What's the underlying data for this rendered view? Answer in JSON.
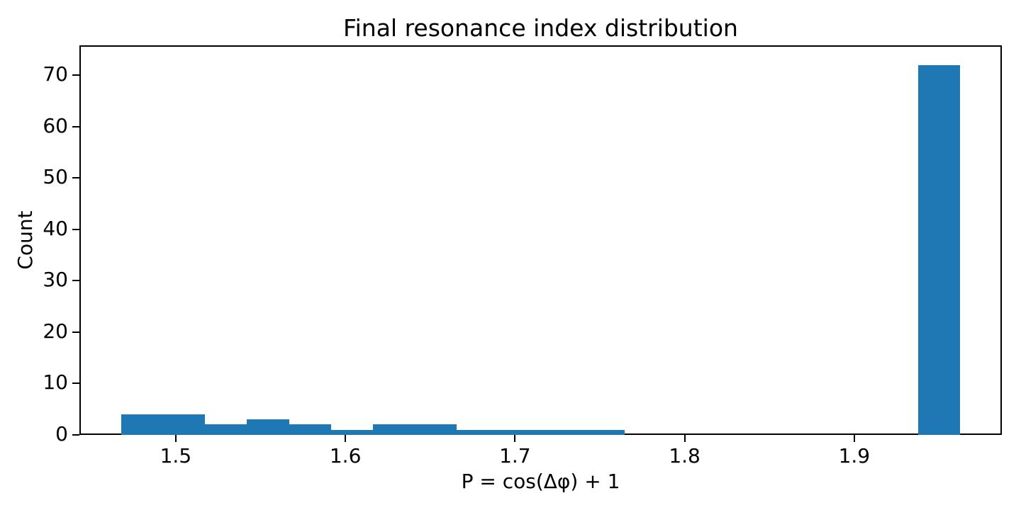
{
  "figure": {
    "title": "Final resonance index distribution",
    "xlabel": "P = cos(Δφ) + 1",
    "ylabel": "Count"
  },
  "chart_data": {
    "type": "bar",
    "subtype": "histogram",
    "title": "Final resonance index distribution",
    "xlabel": "P = cos(Δφ) + 1",
    "ylabel": "Count",
    "bin_start": 1.4679,
    "bin_width": 0.024715,
    "counts": [
      4,
      4,
      2,
      3,
      2,
      1,
      2,
      2,
      1,
      1,
      1,
      1,
      0,
      0,
      0,
      0,
      0,
      0,
      0,
      72
    ],
    "x_ticks": [
      1.5,
      1.6,
      1.7,
      1.8,
      1.9
    ],
    "x_tick_labels": [
      "1.5",
      "1.6",
      "1.7",
      "1.8",
      "1.9"
    ],
    "y_ticks": [
      0,
      10,
      20,
      30,
      40,
      50,
      60,
      70
    ],
    "y_tick_labels": [
      "0",
      "10",
      "20",
      "30",
      "40",
      "50",
      "60",
      "70"
    ],
    "xlim": [
      1.4432,
      1.987
    ],
    "ylim": [
      0,
      75.8
    ],
    "grid": false,
    "legend_position": "none",
    "bar_color": "#1f77b4"
  },
  "colors": {
    "bar": "#1f77b4",
    "spine": "#000000",
    "text": "#000000",
    "background": "#ffffff"
  }
}
